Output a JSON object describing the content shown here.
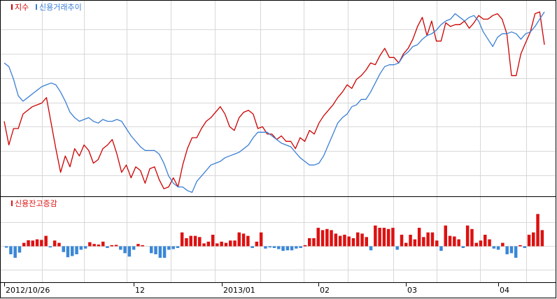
{
  "chart_data": [
    {
      "type": "line",
      "legend": [
        {
          "name": "지수",
          "color": "#cc0000"
        },
        {
          "name": "신용거래추이",
          "color": "#3a7fd5"
        }
      ],
      "legend_placement": "top-left",
      "grid": true,
      "series": [
        {
          "name": "지수",
          "color": "#cc0000",
          "values": [
            0.4,
            0.27,
            0.36,
            0.36,
            0.44,
            0.46,
            0.48,
            0.49,
            0.5,
            0.53,
            0.39,
            0.25,
            0.12,
            0.21,
            0.15,
            0.25,
            0.21,
            0.27,
            0.24,
            0.17,
            0.19,
            0.25,
            0.27,
            0.3,
            0.22,
            0.12,
            0.16,
            0.09,
            0.15,
            0.13,
            0.06,
            0.14,
            0.15,
            0.08,
            0.03,
            0.04,
            0.09,
            0.04,
            0.16,
            0.25,
            0.31,
            0.31,
            0.36,
            0.4,
            0.42,
            0.45,
            0.48,
            0.44,
            0.37,
            0.35,
            0.42,
            0.45,
            0.46,
            0.44,
            0.36,
            0.37,
            0.33,
            0.33,
            0.3,
            0.32,
            0.29,
            0.29,
            0.25,
            0.31,
            0.29,
            0.35,
            0.33,
            0.39,
            0.43,
            0.46,
            0.49,
            0.53,
            0.56,
            0.6,
            0.58,
            0.63,
            0.65,
            0.68,
            0.72,
            0.71,
            0.76,
            0.8,
            0.75,
            0.75,
            0.72,
            0.77,
            0.8,
            0.85,
            0.92,
            0.97,
            0.87,
            0.95,
            0.84,
            0.84,
            0.94,
            0.92,
            0.93,
            0.93,
            0.95,
            0.91,
            0.94,
            0.98,
            0.96,
            0.96,
            0.98,
            0.99,
            0.96,
            0.88,
            0.65,
            0.65,
            0.77,
            0.83,
            0.89,
            0.99,
            1.0,
            0.82
          ]
        },
        {
          "name": "신용거래추이",
          "color": "#3a7fd5",
          "values": [
            0.72,
            0.7,
            0.63,
            0.54,
            0.51,
            0.53,
            0.55,
            0.57,
            0.59,
            0.6,
            0.61,
            0.6,
            0.56,
            0.51,
            0.45,
            0.42,
            0.4,
            0.41,
            0.42,
            0.4,
            0.39,
            0.41,
            0.4,
            0.4,
            0.41,
            0.4,
            0.36,
            0.32,
            0.29,
            0.26,
            0.24,
            0.24,
            0.24,
            0.22,
            0.17,
            0.1,
            0.06,
            0.04,
            0.04,
            0.02,
            0.01,
            0.07,
            0.1,
            0.13,
            0.16,
            0.17,
            0.18,
            0.2,
            0.21,
            0.22,
            0.23,
            0.25,
            0.27,
            0.31,
            0.34,
            0.34,
            0.34,
            0.32,
            0.3,
            0.28,
            0.27,
            0.26,
            0.23,
            0.2,
            0.18,
            0.16,
            0.16,
            0.17,
            0.21,
            0.27,
            0.33,
            0.39,
            0.42,
            0.44,
            0.48,
            0.49,
            0.52,
            0.52,
            0.56,
            0.61,
            0.66,
            0.7,
            0.71,
            0.71,
            0.72,
            0.76,
            0.78,
            0.81,
            0.82,
            0.85,
            0.87,
            0.88,
            0.9,
            0.93,
            0.95,
            0.96,
            0.99,
            0.97,
            0.95,
            0.97,
            0.98,
            0.95,
            0.89,
            0.85,
            0.81,
            0.86,
            0.88,
            0.88,
            0.89,
            0.88,
            0.85,
            0.88,
            0.89,
            0.92,
            0.96,
            1.0
          ]
        }
      ]
    },
    {
      "type": "bar",
      "legend": [
        {
          "name": "신용잔고증감",
          "color": "#dd1111"
        }
      ],
      "legend_placement": "top-left",
      "grid": true,
      "positive_color": "#dd1111",
      "negative_color": "#3a87d8",
      "values": [
        -0.12,
        -0.7,
        -1.0,
        -0.55,
        0.3,
        0.52,
        0.5,
        0.6,
        0.55,
        0.9,
        -0.1,
        0.5,
        0.3,
        -0.5,
        -0.95,
        -0.85,
        -0.7,
        -0.3,
        -0.2,
        0.35,
        0.2,
        0.15,
        0.4,
        -0.15,
        0.1,
        0.12,
        -0.3,
        -0.6,
        -0.9,
        -0.3,
        0.2,
        0.1,
        0.0,
        -0.6,
        -0.7,
        -1.0,
        -1.0,
        -0.3,
        -0.25,
        -0.15,
        1.2,
        0.7,
        0.9,
        0.9,
        0.8,
        0.25,
        0.4,
        1.0,
        0.25,
        0.4,
        0.3,
        0.5,
        0.5,
        1.2,
        1.1,
        0.9,
        -0.15,
        0.4,
        1.2,
        -0.2,
        -0.1,
        -0.15,
        -0.25,
        -0.4,
        -0.35,
        -0.35,
        -0.2,
        -0.15,
        0.1,
        0.7,
        0.7,
        1.6,
        1.4,
        1.5,
        1.4,
        1.1,
        0.9,
        1.0,
        0.85,
        0.7,
        1.2,
        1.1,
        0.8,
        -0.35,
        1.8,
        1.6,
        1.6,
        1.5,
        1.6,
        -0.3,
        1.0,
        0.3,
        1.0,
        0.6,
        1.6,
        0.8,
        1.2,
        1.2,
        0.5,
        -0.4,
        1.8,
        0.9,
        0.85,
        0.6,
        -0.15,
        1.8,
        1.5,
        0.3,
        0.5,
        1.0,
        0.6,
        -0.2,
        -0.3,
        0.3,
        -0.7,
        -0.6,
        -1.0,
        0.1,
        -0.15,
        1.0,
        1.2,
        2.8,
        1.4
      ],
      "x_ticks": [
        {
          "label": "2012/10/26",
          "index": 0
        },
        {
          "label": "12",
          "index": 29
        },
        {
          "label": "2013/01",
          "index": 49
        },
        {
          "label": "02",
          "index": 71
        },
        {
          "label": "03",
          "index": 91
        },
        {
          "label": "04",
          "index": 112
        }
      ]
    }
  ]
}
